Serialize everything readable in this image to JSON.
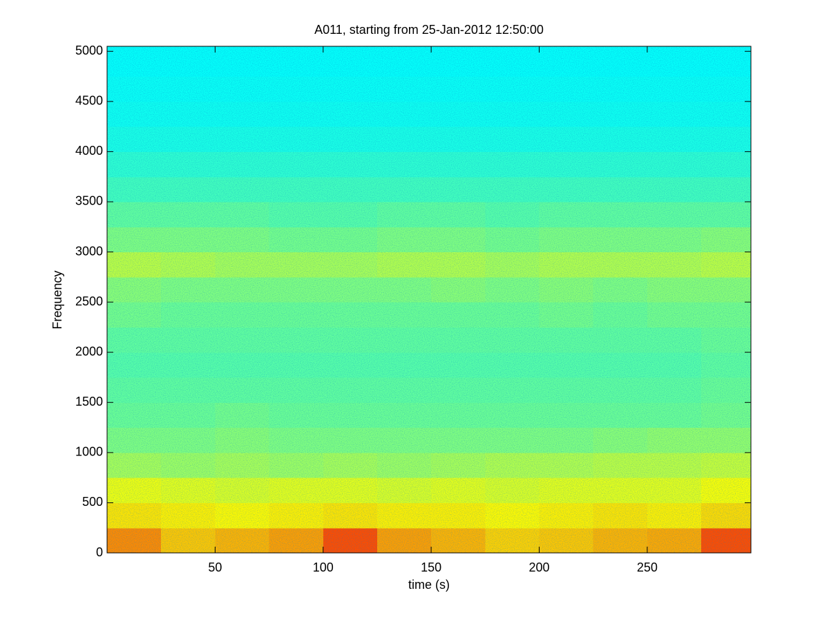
{
  "chart_data": {
    "type": "spectrogram",
    "title": "A011, starting from 25-Jan-2012 12:50:00",
    "xlabel": "time (s)",
    "ylabel": "Frequency",
    "xlim": [
      0,
      298
    ],
    "ylim": [
      0,
      5050
    ],
    "xticks": [
      50,
      100,
      150,
      200,
      250
    ],
    "yticks": [
      0,
      500,
      1000,
      1500,
      2000,
      2500,
      3000,
      3500,
      4000,
      4500,
      5000
    ],
    "colormap": "jet",
    "clim": [
      0,
      1
    ],
    "xbins": [
      0,
      25,
      50,
      75,
      100,
      125,
      150,
      175,
      200,
      225,
      250,
      275,
      298
    ],
    "ybins": [
      0,
      250,
      500,
      750,
      1000,
      1250,
      1500,
      1750,
      2000,
      2250,
      2500,
      2750,
      3000,
      3250,
      3500,
      3750,
      4000,
      4250,
      4500,
      4750,
      5000,
      5050
    ],
    "z": [
      [
        0.74,
        0.68,
        0.7,
        0.72,
        0.8,
        0.72,
        0.7,
        0.67,
        0.68,
        0.7,
        0.71,
        0.8
      ],
      [
        0.65,
        0.64,
        0.63,
        0.64,
        0.65,
        0.64,
        0.64,
        0.63,
        0.64,
        0.65,
        0.64,
        0.66
      ],
      [
        0.61,
        0.6,
        0.59,
        0.6,
        0.6,
        0.59,
        0.6,
        0.59,
        0.6,
        0.6,
        0.6,
        0.62
      ],
      [
        0.54,
        0.53,
        0.54,
        0.53,
        0.54,
        0.53,
        0.54,
        0.55,
        0.55,
        0.56,
        0.56,
        0.57
      ],
      [
        0.5,
        0.5,
        0.51,
        0.5,
        0.5,
        0.5,
        0.5,
        0.5,
        0.5,
        0.51,
        0.52,
        0.52
      ],
      [
        0.48,
        0.48,
        0.49,
        0.48,
        0.48,
        0.48,
        0.48,
        0.48,
        0.48,
        0.48,
        0.48,
        0.49
      ],
      [
        0.47,
        0.47,
        0.47,
        0.47,
        0.47,
        0.47,
        0.47,
        0.47,
        0.47,
        0.47,
        0.47,
        0.48
      ],
      [
        0.46,
        0.46,
        0.46,
        0.46,
        0.46,
        0.46,
        0.46,
        0.46,
        0.46,
        0.46,
        0.46,
        0.47
      ],
      [
        0.47,
        0.47,
        0.47,
        0.47,
        0.47,
        0.47,
        0.47,
        0.47,
        0.47,
        0.47,
        0.47,
        0.48
      ],
      [
        0.49,
        0.48,
        0.48,
        0.48,
        0.48,
        0.48,
        0.48,
        0.48,
        0.49,
        0.48,
        0.49,
        0.49
      ],
      [
        0.51,
        0.5,
        0.5,
        0.5,
        0.5,
        0.5,
        0.51,
        0.5,
        0.51,
        0.5,
        0.51,
        0.51
      ],
      [
        0.56,
        0.55,
        0.54,
        0.54,
        0.54,
        0.55,
        0.55,
        0.54,
        0.55,
        0.55,
        0.55,
        0.56
      ],
      [
        0.5,
        0.5,
        0.5,
        0.49,
        0.49,
        0.5,
        0.5,
        0.49,
        0.5,
        0.5,
        0.5,
        0.51
      ],
      [
        0.47,
        0.47,
        0.47,
        0.46,
        0.46,
        0.47,
        0.47,
        0.46,
        0.47,
        0.47,
        0.47,
        0.47
      ],
      [
        0.44,
        0.44,
        0.44,
        0.44,
        0.44,
        0.44,
        0.44,
        0.44,
        0.44,
        0.44,
        0.44,
        0.44
      ],
      [
        0.42,
        0.42,
        0.42,
        0.42,
        0.42,
        0.42,
        0.42,
        0.42,
        0.42,
        0.42,
        0.42,
        0.42
      ],
      [
        0.4,
        0.4,
        0.4,
        0.4,
        0.4,
        0.4,
        0.4,
        0.4,
        0.4,
        0.4,
        0.4,
        0.4
      ],
      [
        0.39,
        0.39,
        0.39,
        0.39,
        0.39,
        0.39,
        0.39,
        0.39,
        0.39,
        0.39,
        0.39,
        0.39
      ],
      [
        0.385,
        0.385,
        0.385,
        0.385,
        0.385,
        0.385,
        0.385,
        0.385,
        0.385,
        0.385,
        0.385,
        0.385
      ],
      [
        0.38,
        0.38,
        0.38,
        0.38,
        0.38,
        0.38,
        0.38,
        0.38,
        0.38,
        0.38,
        0.38,
        0.38
      ],
      [
        0.38,
        0.38,
        0.38,
        0.38,
        0.38,
        0.38,
        0.38,
        0.38,
        0.38,
        0.38,
        0.38,
        0.38
      ]
    ]
  }
}
